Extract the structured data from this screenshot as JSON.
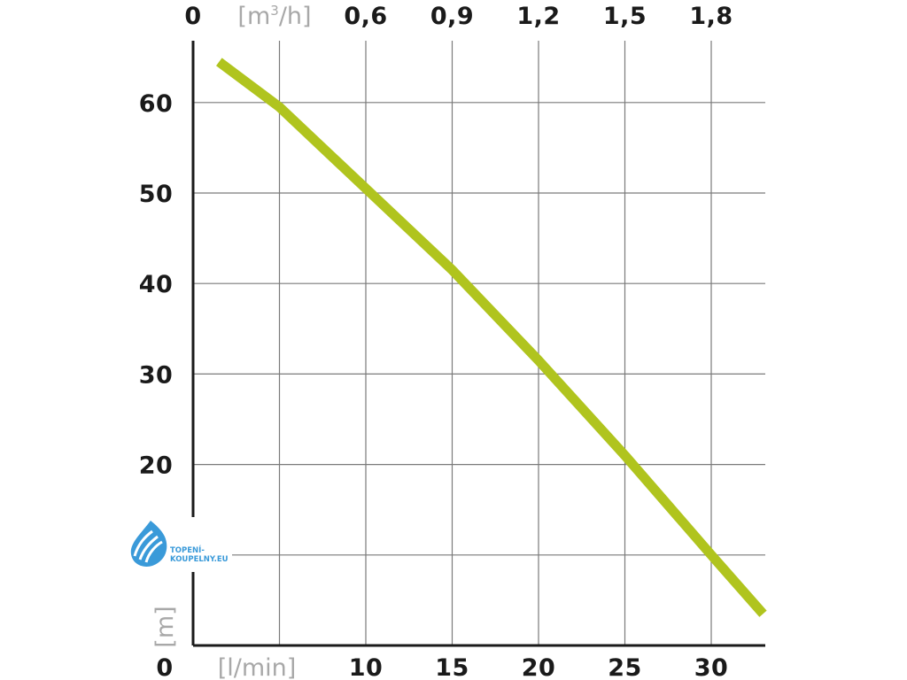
{
  "chart_data": {
    "type": "line",
    "x_axis_bottom": {
      "unit": "[l/min]",
      "origin_label": "0",
      "ticks": [
        10,
        15,
        20,
        25,
        30
      ],
      "range": [
        0,
        33
      ]
    },
    "x_axis_top": {
      "unit_base": "[m",
      "unit_sup": "3",
      "unit_tail": "/h]",
      "origin_label": "0",
      "ticks": [
        "0,6",
        "0,9",
        "1,2",
        "1,5",
        "1,8"
      ]
    },
    "y_axis": {
      "unit": "[m]",
      "origin_label": "0",
      "ticks": [
        10,
        20,
        30,
        40,
        50,
        60
      ],
      "tick_labels": [
        "",
        "20",
        "30",
        "40",
        "50",
        "60"
      ],
      "range": [
        0,
        68
      ]
    },
    "grid": true,
    "series": [
      {
        "color": "#b0c41e",
        "x": [
          1.5,
          5,
          10,
          15,
          20,
          25,
          30,
          33
        ],
        "y": [
          64.5,
          59.5,
          50.5,
          41.5,
          31.5,
          21,
          10,
          3.5
        ]
      }
    ]
  },
  "logo": {
    "line1": "TOPENÍ-",
    "line2": "KOUPELNY.EU",
    "color": "#3a9ad9"
  }
}
